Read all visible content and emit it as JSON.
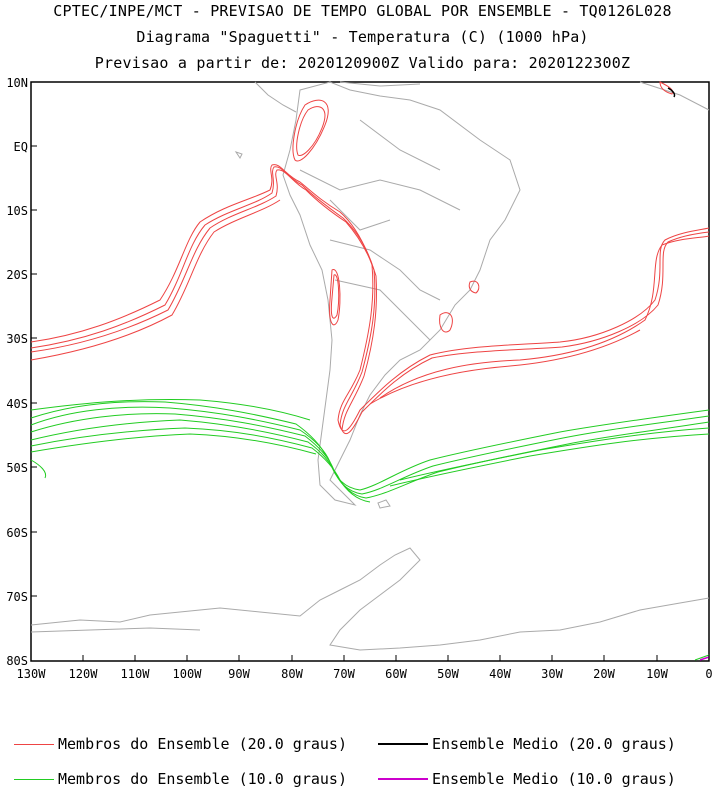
{
  "header": {
    "line1": "CPTEC/INPE/MCT - PREVISAO DE TEMPO GLOBAL POR ENSEMBLE - TQ0126L028",
    "line2": "Diagrama \"Spaguetti\" - Temperatura (C) (1000 hPa)",
    "line3": "Previsao a partir de: 2020120900Z  Valido para: 2020122300Z"
  },
  "map": {
    "lat_labels": [
      "10N",
      "EQ",
      "10S",
      "20S",
      "30S",
      "40S",
      "50S",
      "60S",
      "70S",
      "80S"
    ],
    "lon_labels": [
      "130W",
      "120W",
      "110W",
      "100W",
      "90W",
      "80W",
      "70W",
      "60W",
      "50W",
      "40W",
      "30W",
      "20W",
      "10W",
      "0"
    ],
    "colors": {
      "coast": "#aaaaaa",
      "warm": "#ee4444",
      "cold": "#22cc22",
      "mean20": "#000000",
      "mean10": "#cc00cc"
    }
  },
  "legend": {
    "members20": "Membros do Ensemble (20.0 graus)",
    "mean20": "Ensemble Medio (20.0 graus)",
    "members10": "Membros do Ensemble (10.0 graus)",
    "mean10": "Ensemble Medio (10.0 graus)"
  }
}
